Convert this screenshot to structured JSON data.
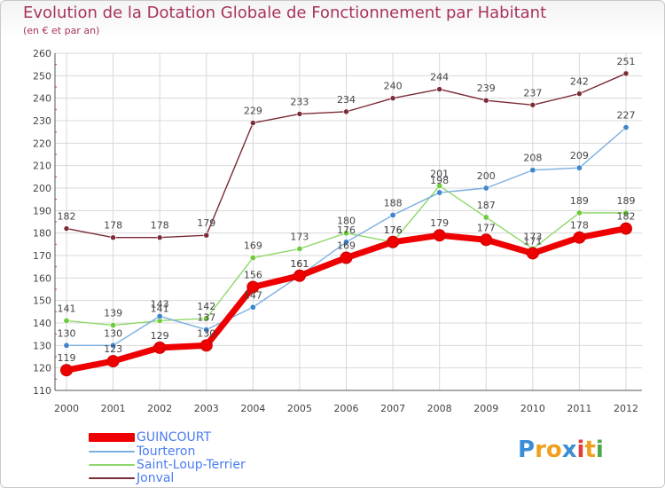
{
  "header": {
    "title": "Evolution de la Dotation Globale de Fonctionnement par Habitant",
    "subtitle": "(en € et par an)"
  },
  "colors": {
    "title": "#a8325e",
    "legend_text": "#4a7cf0",
    "grid": "#d8d8d8",
    "axis": "#555555"
  },
  "chart_data": {
    "type": "line",
    "title": "Evolution de la Dotation Globale de Fonctionnement par Habitant",
    "subtitle": "(en € et par an)",
    "xlabel": "",
    "ylabel": "",
    "ylim": [
      110,
      260
    ],
    "yticks": [
      110,
      120,
      130,
      140,
      150,
      160,
      170,
      180,
      190,
      200,
      210,
      220,
      230,
      240,
      250,
      260
    ],
    "grid": true,
    "legend_position": "bottom-left",
    "categories": [
      "2000",
      "2001",
      "2002",
      "2003",
      "2004",
      "2005",
      "2006",
      "2007",
      "2008",
      "2009",
      "2010",
      "2011",
      "2012"
    ],
    "series": [
      {
        "name": "Jonval",
        "color": "#7a2b35",
        "values": [
          182,
          178,
          178,
          179,
          229,
          233,
          234,
          240,
          244,
          239,
          237,
          242,
          251
        ],
        "labels": [
          "182",
          "178",
          "178",
          "179",
          "229",
          "233",
          "234",
          "240",
          "244",
          "239",
          "237",
          "242",
          "251"
        ]
      },
      {
        "name": "Saint-Loup-Terrier",
        "color": "#8ed86a",
        "marker_color": "#6fcb3c",
        "values": [
          141,
          139,
          141,
          142,
          169,
          173,
          180,
          176,
          201,
          187,
          173,
          189,
          189
        ],
        "labels": [
          "141",
          "139",
          "141",
          "142",
          "169",
          "173",
          "180",
          "176",
          "201",
          "187",
          "173",
          "189",
          "189"
        ]
      },
      {
        "name": "Tourteron",
        "color": "#7aaee0",
        "marker_color": "#3f86cc",
        "values": [
          130,
          130,
          143,
          137,
          147,
          161,
          176,
          188,
          198,
          200,
          208,
          209,
          227
        ],
        "labels": [
          "130",
          "130",
          "143",
          "137",
          "147",
          "161",
          "176",
          "188",
          "198",
          "200",
          "208",
          "209",
          "227"
        ]
      },
      {
        "name": "GUINCOURT",
        "color": "#ee0000",
        "values": [
          119,
          123,
          129,
          130,
          156,
          161,
          169,
          176,
          179,
          177,
          171,
          178,
          182
        ],
        "labels": [
          "119",
          "123",
          "129",
          "130",
          "156",
          "161",
          "169",
          "176",
          "179",
          "177",
          "171",
          "178",
          "182"
        ]
      }
    ]
  },
  "legend": {
    "items": [
      {
        "label": "GUINCOURT",
        "color": "#ee0000"
      },
      {
        "label": "Tourteron",
        "color": "#7aaee0"
      },
      {
        "label": "Saint-Loup-Terrier",
        "color": "#8ed86a"
      },
      {
        "label": "Jonval",
        "color": "#7a2b35"
      }
    ]
  },
  "logo": {
    "letters": [
      "P",
      "r",
      "o",
      "x",
      "i",
      "t",
      "i"
    ],
    "colors": [
      "#3b8ed6",
      "#f0a020",
      "#f0a020",
      "#3b8ed6",
      "#e23c3c",
      "#f0a020",
      "#4aa84a"
    ]
  }
}
